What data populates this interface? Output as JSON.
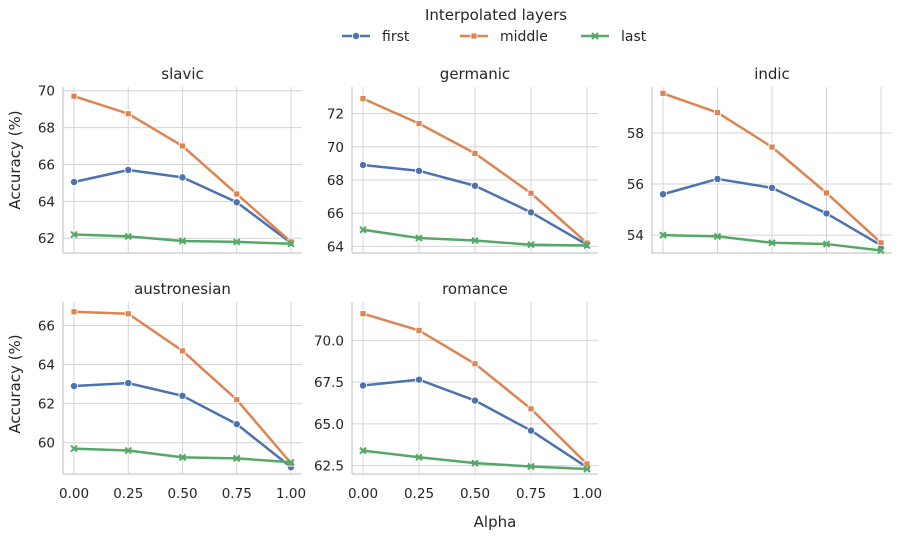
{
  "chart_data": {
    "type": "line",
    "legend": {
      "title": "Interpolated layers",
      "placement": "top-center",
      "entries": [
        {
          "name": "first",
          "color": "#4c72b0",
          "marker": "circle"
        },
        {
          "name": "middle",
          "color": "#dd8452",
          "marker": "square"
        },
        {
          "name": "last",
          "color": "#55a868",
          "marker": "x"
        }
      ]
    },
    "xlabel": "Alpha",
    "ylabel": "Accuracy (%)",
    "x": [
      0.0,
      0.25,
      0.5,
      0.75,
      1.0
    ],
    "xtick_labels": [
      "0.00",
      "0.25",
      "0.50",
      "0.75",
      "1.00"
    ],
    "grid": true,
    "panels": [
      {
        "title": "slavic",
        "ylim": [
          61.2,
          70.2
        ],
        "yticks": [
          62,
          64,
          66,
          68,
          70
        ],
        "ytick_labels": [
          "62",
          "64",
          "66",
          "68",
          "70"
        ],
        "series": [
          {
            "name": "first",
            "values": [
              65.05,
              65.7,
              65.3,
              63.95,
              61.75
            ]
          },
          {
            "name": "middle",
            "values": [
              69.7,
              68.75,
              67.0,
              64.4,
              61.8
            ]
          },
          {
            "name": "last",
            "values": [
              62.2,
              62.1,
              61.85,
              61.8,
              61.7
            ]
          }
        ]
      },
      {
        "title": "germanic",
        "ylim": [
          63.6,
          73.6
        ],
        "yticks": [
          64,
          66,
          68,
          70,
          72
        ],
        "ytick_labels": [
          "64",
          "66",
          "68",
          "70",
          "72"
        ],
        "series": [
          {
            "name": "first",
            "values": [
              68.9,
              68.55,
              67.65,
              66.05,
              64.1
            ]
          },
          {
            "name": "middle",
            "values": [
              72.9,
              71.4,
              69.6,
              67.2,
              64.2
            ]
          },
          {
            "name": "last",
            "values": [
              65.0,
              64.5,
              64.35,
              64.1,
              64.05
            ]
          }
        ]
      },
      {
        "title": "indic",
        "ylim": [
          53.3,
          59.8
        ],
        "yticks": [
          54,
          56,
          58
        ],
        "ytick_labels": [
          "54",
          "56",
          "58"
        ],
        "series": [
          {
            "name": "first",
            "values": [
              55.6,
              56.2,
              55.85,
              54.85,
              53.6
            ]
          },
          {
            "name": "middle",
            "values": [
              59.55,
              58.8,
              57.45,
              55.65,
              53.7
            ]
          },
          {
            "name": "last",
            "values": [
              54.0,
              53.95,
              53.7,
              53.65,
              53.4
            ]
          }
        ]
      },
      {
        "title": "austronesian",
        "ylim": [
          58.4,
          67.2
        ],
        "yticks": [
          60,
          62,
          64,
          66
        ],
        "ytick_labels": [
          "60",
          "62",
          "64",
          "66"
        ],
        "series": [
          {
            "name": "first",
            "values": [
              62.9,
              63.05,
              62.4,
              60.95,
              58.75
            ]
          },
          {
            "name": "middle",
            "values": [
              66.7,
              66.6,
              64.7,
              62.2,
              58.95
            ]
          },
          {
            "name": "last",
            "values": [
              59.7,
              59.6,
              59.25,
              59.2,
              59.0
            ]
          }
        ]
      },
      {
        "title": "romance",
        "ylim": [
          62.0,
          72.3
        ],
        "yticks": [
          62.5,
          65.0,
          67.5,
          70.0
        ],
        "ytick_labels": [
          "62.5",
          "65.0",
          "67.5",
          "70.0"
        ],
        "series": [
          {
            "name": "first",
            "values": [
              67.3,
              67.65,
              66.4,
              64.6,
              62.4
            ]
          },
          {
            "name": "middle",
            "values": [
              71.6,
              70.6,
              68.6,
              65.9,
              62.6
            ]
          },
          {
            "name": "last",
            "values": [
              63.4,
              63.0,
              62.65,
              62.45,
              62.3
            ]
          }
        ]
      }
    ]
  }
}
